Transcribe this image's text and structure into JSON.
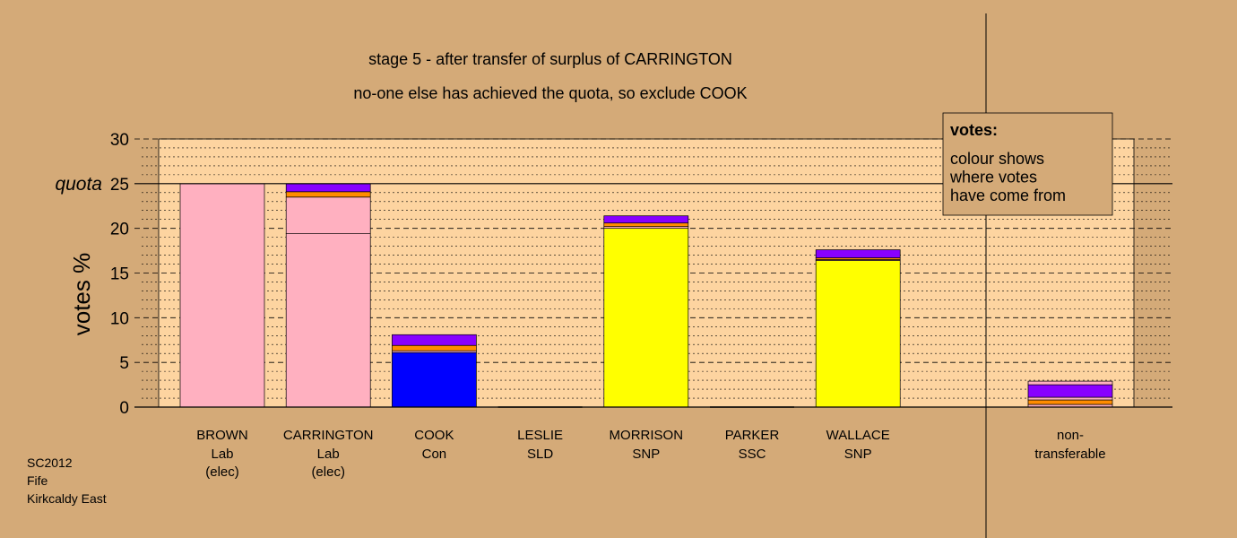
{
  "chart_data": {
    "type": "bar",
    "title": "stage 5 - after transfer of surplus of CARRINGTON",
    "subtitle": "no-one else has achieved the quota, so exclude COOK",
    "ylabel": "votes %",
    "ylim": [
      0,
      30
    ],
    "yticks": [
      "0",
      "5",
      "10",
      "15",
      "20",
      "25",
      "30"
    ],
    "quota": 25,
    "quota_label": "quota",
    "grid": true,
    "categories": [
      {
        "line1": "BROWN",
        "line2": "Lab",
        "line3": "(elec)"
      },
      {
        "line1": "CARRINGTON",
        "line2": "Lab",
        "line3": "(elec)"
      },
      {
        "line1": "COOK",
        "line2": "Con",
        "line3": ""
      },
      {
        "line1": "LESLIE",
        "line2": "SLD",
        "line3": ""
      },
      {
        "line1": "MORRISON",
        "line2": "SNP",
        "line3": ""
      },
      {
        "line1": "PARKER",
        "line2": "SSC",
        "line3": ""
      },
      {
        "line1": "WALLACE",
        "line2": "SNP",
        "line3": ""
      },
      {
        "line1": "non-",
        "line2": "transferable",
        "line3": ""
      }
    ],
    "bars": [
      {
        "segments": [
          {
            "value": 25.0,
            "color": "#ffb0c0"
          }
        ]
      },
      {
        "segments": [
          {
            "value": 19.4,
            "color": "#ffb0c0"
          },
          {
            "value": 4.1,
            "color": "#ffb0c0"
          },
          {
            "value": 0.6,
            "color": "#ff8c00"
          },
          {
            "value": 0.9,
            "color": "#8800ff"
          }
        ]
      },
      {
        "segments": [
          {
            "value": 6.1,
            "color": "#0000ff"
          },
          {
            "value": 0.2,
            "color": "#ffb0c0"
          },
          {
            "value": 0.6,
            "color": "#ff8c00"
          },
          {
            "value": 1.2,
            "color": "#8800ff"
          }
        ]
      },
      {
        "segments": []
      },
      {
        "segments": [
          {
            "value": 20.0,
            "color": "#ffff00"
          },
          {
            "value": 0.2,
            "color": "#ffb0c0"
          },
          {
            "value": 0.4,
            "color": "#ff8c00"
          },
          {
            "value": 0.8,
            "color": "#8800ff"
          }
        ]
      },
      {
        "segments": []
      },
      {
        "segments": [
          {
            "value": 16.4,
            "color": "#ffff00"
          },
          {
            "value": 0.1,
            "color": "#ffb0c0"
          },
          {
            "value": 0.2,
            "color": "#ff8c00"
          },
          {
            "value": 0.9,
            "color": "#8800ff"
          }
        ]
      },
      {
        "segments": [
          {
            "value": 0.3,
            "color": "#ffb0c0"
          },
          {
            "value": 0.5,
            "color": "#ff8c00"
          },
          {
            "value": 0.3,
            "color": "#ffb0c0"
          },
          {
            "value": 1.4,
            "color": "#8800ff"
          },
          {
            "value": 0.4,
            "color": "#ffb0c0"
          }
        ]
      }
    ],
    "legend": {
      "position": "top-right",
      "title": "votes:",
      "lines": [
        "colour shows",
        "where votes",
        "have come from"
      ]
    }
  },
  "colors": {
    "background": "#d4aa78",
    "plot_background": "#fdd4a0",
    "legend_background": "#d4aa78"
  },
  "footnote": {
    "line1": "SC2012",
    "line2": "Fife",
    "line3": "Kirkcaldy East"
  }
}
